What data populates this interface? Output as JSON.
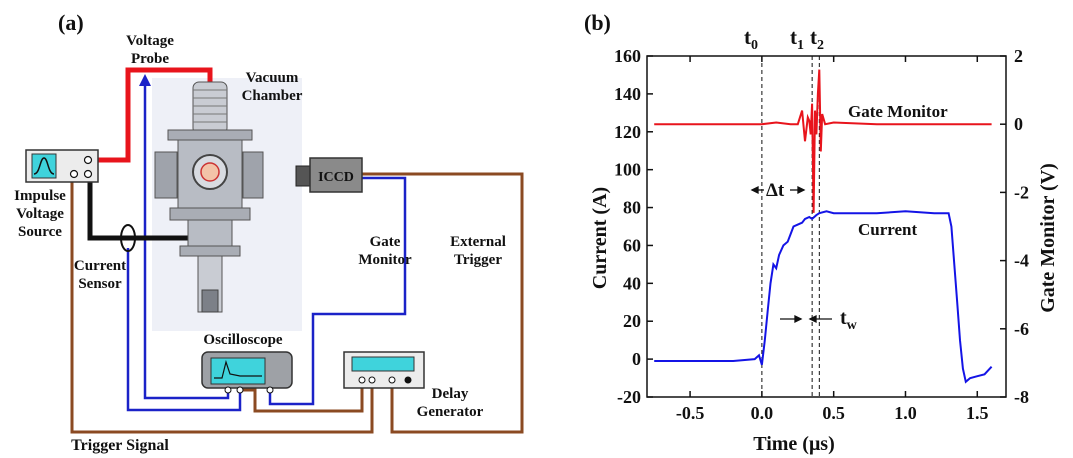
{
  "panel_a": {
    "tag": "(a)",
    "labels": {
      "voltage_probe_1": "Voltage",
      "voltage_probe_2": "Probe",
      "vacuum_1": "Vacuum",
      "vacuum_2": "Chamber",
      "impulse_1": "Impulse",
      "impulse_2": "Voltage",
      "impulse_3": "Source",
      "current_sensor_1": "Current",
      "current_sensor_2": "Sensor",
      "iccd": "ICCD",
      "gate_1": "Gate",
      "gate_2": "Monitor",
      "ext_1": "External",
      "ext_2": "Trigger",
      "oscilloscope": "Oscilloscope",
      "delay_1": "Delay",
      "delay_2": "Generator",
      "trigger_signal": "Trigger Signal"
    },
    "colors": {
      "hv_line": "#e8141c",
      "ground_line": "#111111",
      "gate_line": "#1b22c8",
      "trigger_line": "#8b4a22",
      "external_text": "#e8141c",
      "gate_text": "#1b22c8",
      "screen": "#3fd3dc"
    }
  },
  "panel_b": {
    "tag": "(b)",
    "markers": {
      "t0": "t",
      "t0_sub": "0",
      "t1": "t",
      "t1_sub": "1",
      "t2": "t",
      "t2_sub": "2"
    },
    "annotations": {
      "gate_monitor": "Gate Monitor",
      "current": "Current",
      "delta_t": "Δt",
      "tw": "t",
      "tw_sub": "w"
    }
  },
  "chart_data": {
    "type": "line",
    "xlabel": "Time (μs)",
    "ylabel": "Current (A)",
    "y2label": "Gate Monitor (V)",
    "xlim": [
      -0.8,
      1.7
    ],
    "ylim": [
      -20,
      160
    ],
    "y2lim": [
      -8,
      2
    ],
    "xticks": [
      -0.5,
      0.0,
      0.5,
      1.0,
      1.5
    ],
    "xtick_labels": [
      "-0.5",
      "0.0",
      "0.5",
      "1.0",
      "1.5"
    ],
    "yticks": [
      -20,
      0,
      20,
      40,
      60,
      80,
      100,
      120,
      140,
      160
    ],
    "ytick_labels": [
      "-20",
      "0",
      "20",
      "40",
      "60",
      "80",
      "100",
      "120",
      "140",
      "160"
    ],
    "y2ticks": [
      -8,
      -6,
      -4,
      -2,
      0,
      2
    ],
    "y2tick_labels": [
      "-8",
      "-6",
      "-4",
      "-2",
      "0",
      "2"
    ],
    "vlines": [
      0.0,
      0.35,
      0.4
    ],
    "series": [
      {
        "name": "Current",
        "axis": "left",
        "color": "#1414e6",
        "x": [
          -0.75,
          -0.5,
          -0.2,
          -0.05,
          -0.02,
          0.0,
          0.02,
          0.04,
          0.06,
          0.08,
          0.1,
          0.12,
          0.15,
          0.18,
          0.2,
          0.22,
          0.25,
          0.28,
          0.3,
          0.33,
          0.35,
          0.38,
          0.4,
          0.45,
          0.5,
          0.6,
          0.8,
          1.0,
          1.2,
          1.3,
          1.32,
          1.34,
          1.36,
          1.38,
          1.4,
          1.42,
          1.45,
          1.5,
          1.55,
          1.6
        ],
        "y": [
          -1,
          -1,
          -1,
          0,
          2,
          -3,
          10,
          25,
          40,
          50,
          48,
          55,
          60,
          62,
          66,
          70,
          71,
          72,
          74,
          75,
          74,
          76,
          77,
          78,
          77,
          77,
          77,
          78,
          77,
          77,
          70,
          50,
          30,
          10,
          -5,
          -12,
          -10,
          -9,
          -8,
          -4
        ]
      },
      {
        "name": "Gate Monitor",
        "axis": "right",
        "color": "#e8141c",
        "x": [
          -0.75,
          -0.5,
          -0.2,
          0.0,
          0.1,
          0.2,
          0.25,
          0.28,
          0.3,
          0.32,
          0.33,
          0.34,
          0.35,
          0.36,
          0.37,
          0.38,
          0.39,
          0.4,
          0.41,
          0.42,
          0.44,
          0.5,
          0.8,
          1.2,
          1.6
        ],
        "y": [
          0.0,
          0.0,
          0.0,
          0.0,
          0.05,
          0.0,
          0.0,
          0.4,
          -0.5,
          0.2,
          0.1,
          -0.3,
          0.6,
          -2.6,
          0.4,
          -0.3,
          0.9,
          1.6,
          -0.8,
          0.3,
          0.0,
          0.05,
          0.0,
          0.0,
          0.0
        ]
      }
    ],
    "grid": false,
    "legend": "none"
  }
}
